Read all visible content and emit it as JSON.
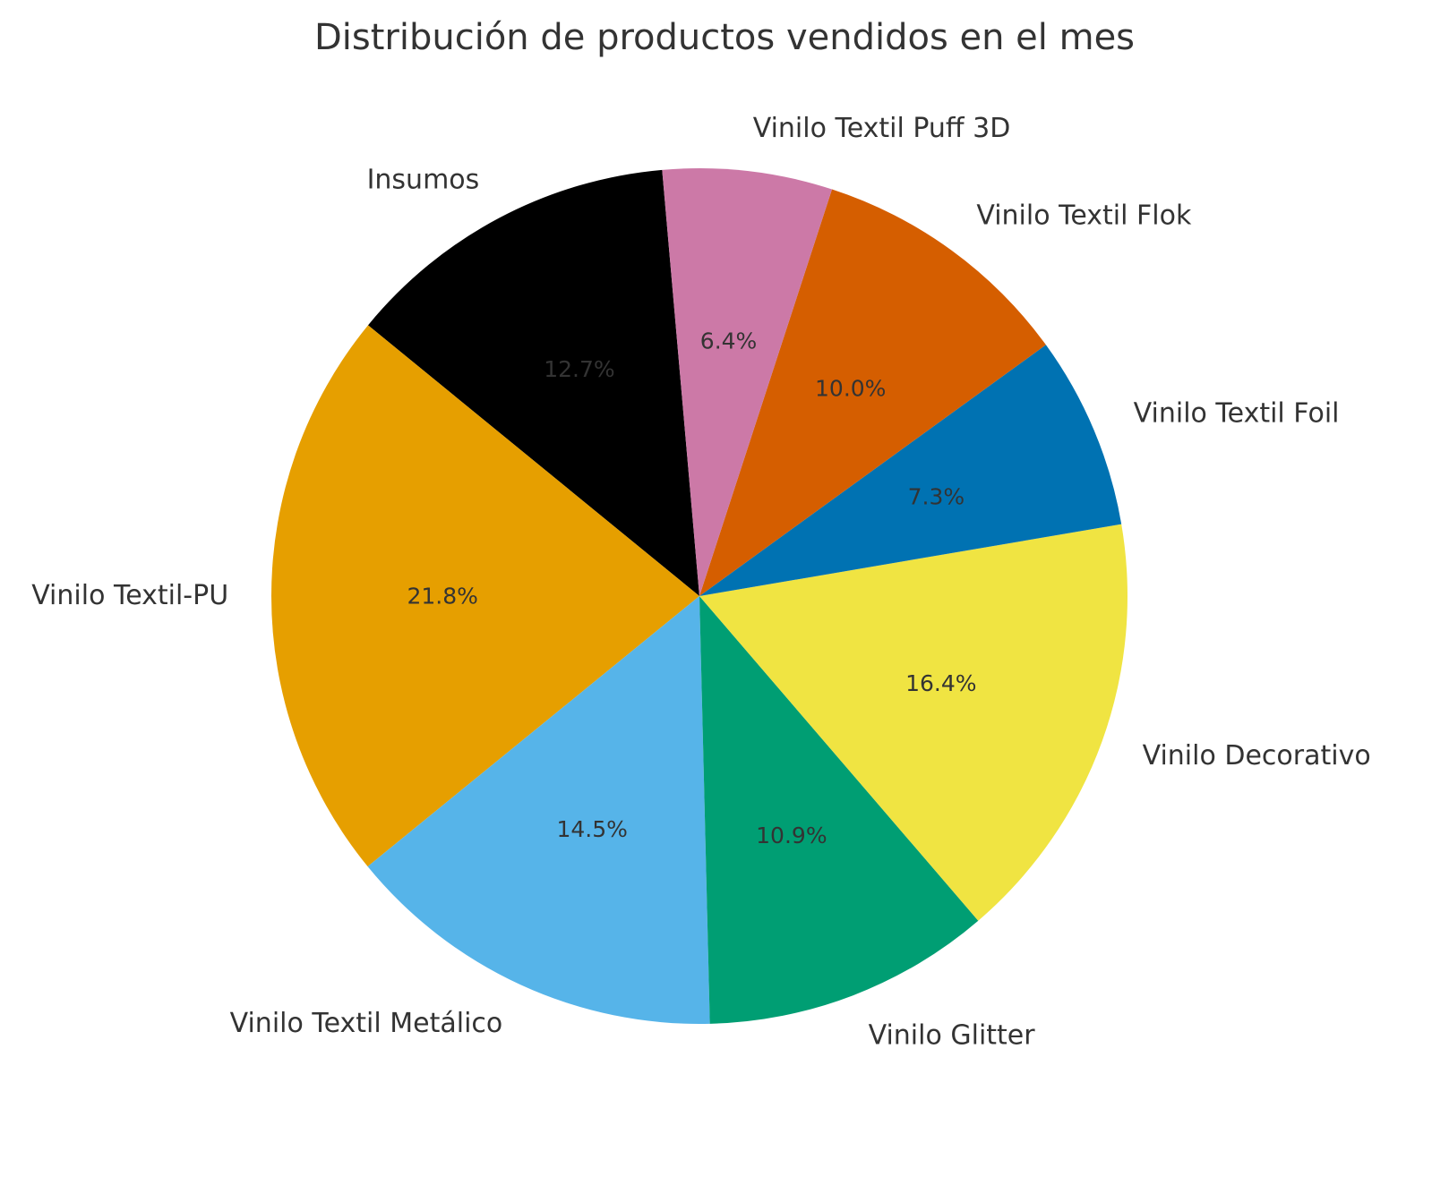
{
  "chart_data": {
    "type": "pie",
    "title": "Distribución de productos vendidos en el mes",
    "start_angle_deg": 95,
    "direction": "counterclockwise",
    "slices": [
      {
        "label": "Insumos",
        "value": 12.7,
        "pct_label": "12.7%",
        "color": "#000000",
        "pct_color": "#333333"
      },
      {
        "label": "Vinilo Textil-PU",
        "value": 21.8,
        "pct_label": "21.8%",
        "color": "#E69F00",
        "pct_color": "#333333"
      },
      {
        "label": "Vinilo Textil Metálico",
        "value": 14.5,
        "pct_label": "14.5%",
        "color": "#56B4E9",
        "pct_color": "#333333"
      },
      {
        "label": "Vinilo Glitter",
        "value": 10.9,
        "pct_label": "10.9%",
        "color": "#009E73",
        "pct_color": "#333333"
      },
      {
        "label": "Vinilo Decorativo",
        "value": 16.4,
        "pct_label": "16.4%",
        "color": "#F0E442",
        "pct_color": "#333333"
      },
      {
        "label": "Vinilo Textil Foil",
        "value": 7.3,
        "pct_label": "7.3%",
        "color": "#0072B2",
        "pct_color": "#333333"
      },
      {
        "label": "Vinilo Textil Flok",
        "value": 10.0,
        "pct_label": "10.0%",
        "color": "#D55E00",
        "pct_color": "#333333"
      },
      {
        "label": "Vinilo Textil Puff 3D",
        "value": 6.4,
        "pct_label": "6.4%",
        "color": "#CC79A7",
        "pct_color": "#333333"
      }
    ]
  }
}
